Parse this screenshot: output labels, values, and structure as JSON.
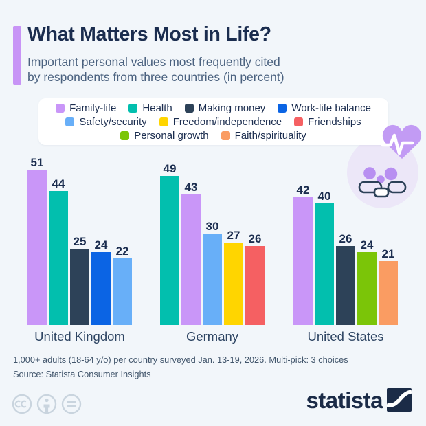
{
  "page": {
    "background": "#f2f6fa",
    "accent_color": "#c894f6"
  },
  "header": {
    "title": "What Matters Most in Life?",
    "subtitle": "Important personal values most frequently cited\nby respondents from three countries (in percent)"
  },
  "chart_data": {
    "type": "bar",
    "title": "What Matters Most in Life?",
    "unit": "percent",
    "ylim": [
      0,
      55
    ],
    "grid": false,
    "legend_position": "top",
    "value_labels": true,
    "legend": [
      {
        "label": "Family-life",
        "color": "#c996f8"
      },
      {
        "label": "Health",
        "color": "#02bfae"
      },
      {
        "label": "Making money",
        "color": "#2d4258"
      },
      {
        "label": "Work-life balance",
        "color": "#0b64e4"
      },
      {
        "label": "Safety/security",
        "color": "#68aff8"
      },
      {
        "label": "Freedom/independence",
        "color": "#ffd500"
      },
      {
        "label": "Friendships",
        "color": "#f56062"
      },
      {
        "label": "Personal growth",
        "color": "#7bc508"
      },
      {
        "label": "Faith/spirituality",
        "color": "#fa9c62"
      }
    ],
    "groups": [
      {
        "country": "United Kingdom",
        "bars": [
          {
            "series": "Family-life",
            "value": 51
          },
          {
            "series": "Health",
            "value": 44
          },
          {
            "series": "Making money",
            "value": 25
          },
          {
            "series": "Work-life balance",
            "value": 24
          },
          {
            "series": "Safety/security",
            "value": 22
          }
        ]
      },
      {
        "country": "Germany",
        "bars": [
          {
            "series": "Health",
            "value": 49
          },
          {
            "series": "Family-life",
            "value": 43
          },
          {
            "series": "Safety/security",
            "value": 30
          },
          {
            "series": "Freedom/independence",
            "value": 27
          },
          {
            "series": "Friendships",
            "value": 26
          }
        ]
      },
      {
        "country": "United States",
        "bars": [
          {
            "series": "Family-life",
            "value": 42
          },
          {
            "series": "Health",
            "value": 40
          },
          {
            "series": "Making money",
            "value": 26
          },
          {
            "series": "Personal growth",
            "value": 24
          },
          {
            "series": "Faith/spirituality",
            "value": 21
          }
        ]
      }
    ]
  },
  "decoration": {
    "illustration": "heart-pulse-and-family"
  },
  "footer": {
    "note": "1,000+ adults (18-64 y/o) per country surveyed Jan. 13-19, 2026. Multi-pick: 3 choices",
    "source": "Source: Statista Consumer Insights",
    "brand": "statista",
    "license_icons": [
      "cc",
      "attribution",
      "equals"
    ]
  }
}
